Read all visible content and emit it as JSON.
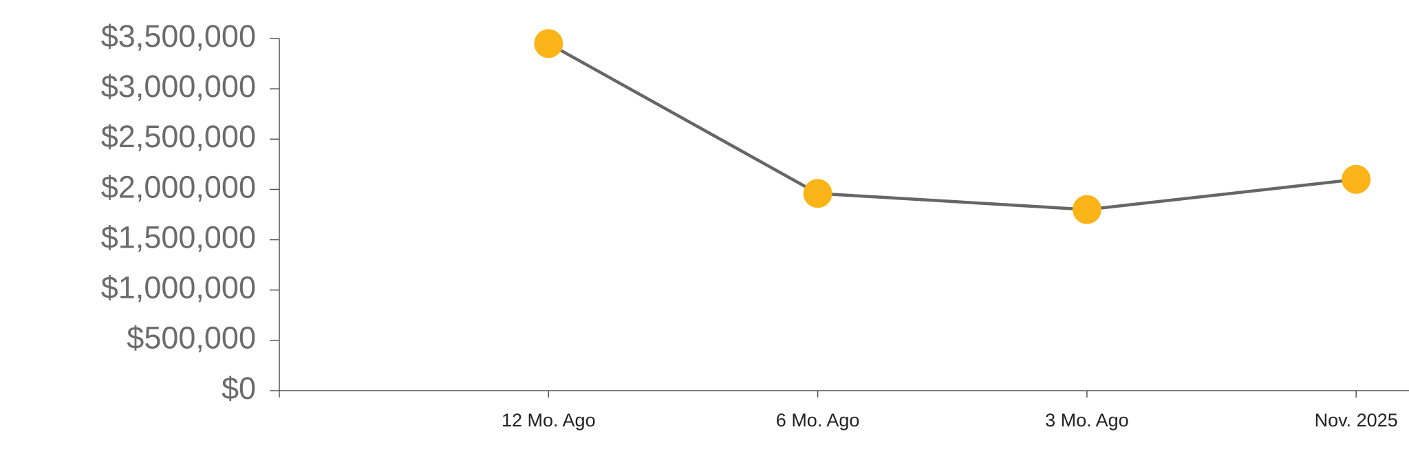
{
  "chart_data": {
    "type": "line",
    "categories": [
      null,
      "12 Mo. Ago",
      "6 Mo. Ago",
      "3 Mo. Ago",
      "Nov. 2025"
    ],
    "series": [
      {
        "color": "#fbb417",
        "values": [
          null,
          3450000,
          1960000,
          1800000,
          2100000
        ]
      }
    ],
    "ylim": [
      0,
      3500000
    ],
    "yticks": [
      {
        "value": 0,
        "label": "$0"
      },
      {
        "value": 500000,
        "label": "$500,000"
      },
      {
        "value": 1000000,
        "label": "$1,000,000"
      },
      {
        "value": 1500000,
        "label": "$1,500,000"
      },
      {
        "value": 2000000,
        "label": "$2,000,000"
      },
      {
        "value": 2500000,
        "label": "$2,500,000"
      },
      {
        "value": 3000000,
        "label": "$3,000,000"
      },
      {
        "value": 3500000,
        "label": "$3,500,000"
      }
    ],
    "line_color": "#666666",
    "grid": false
  }
}
